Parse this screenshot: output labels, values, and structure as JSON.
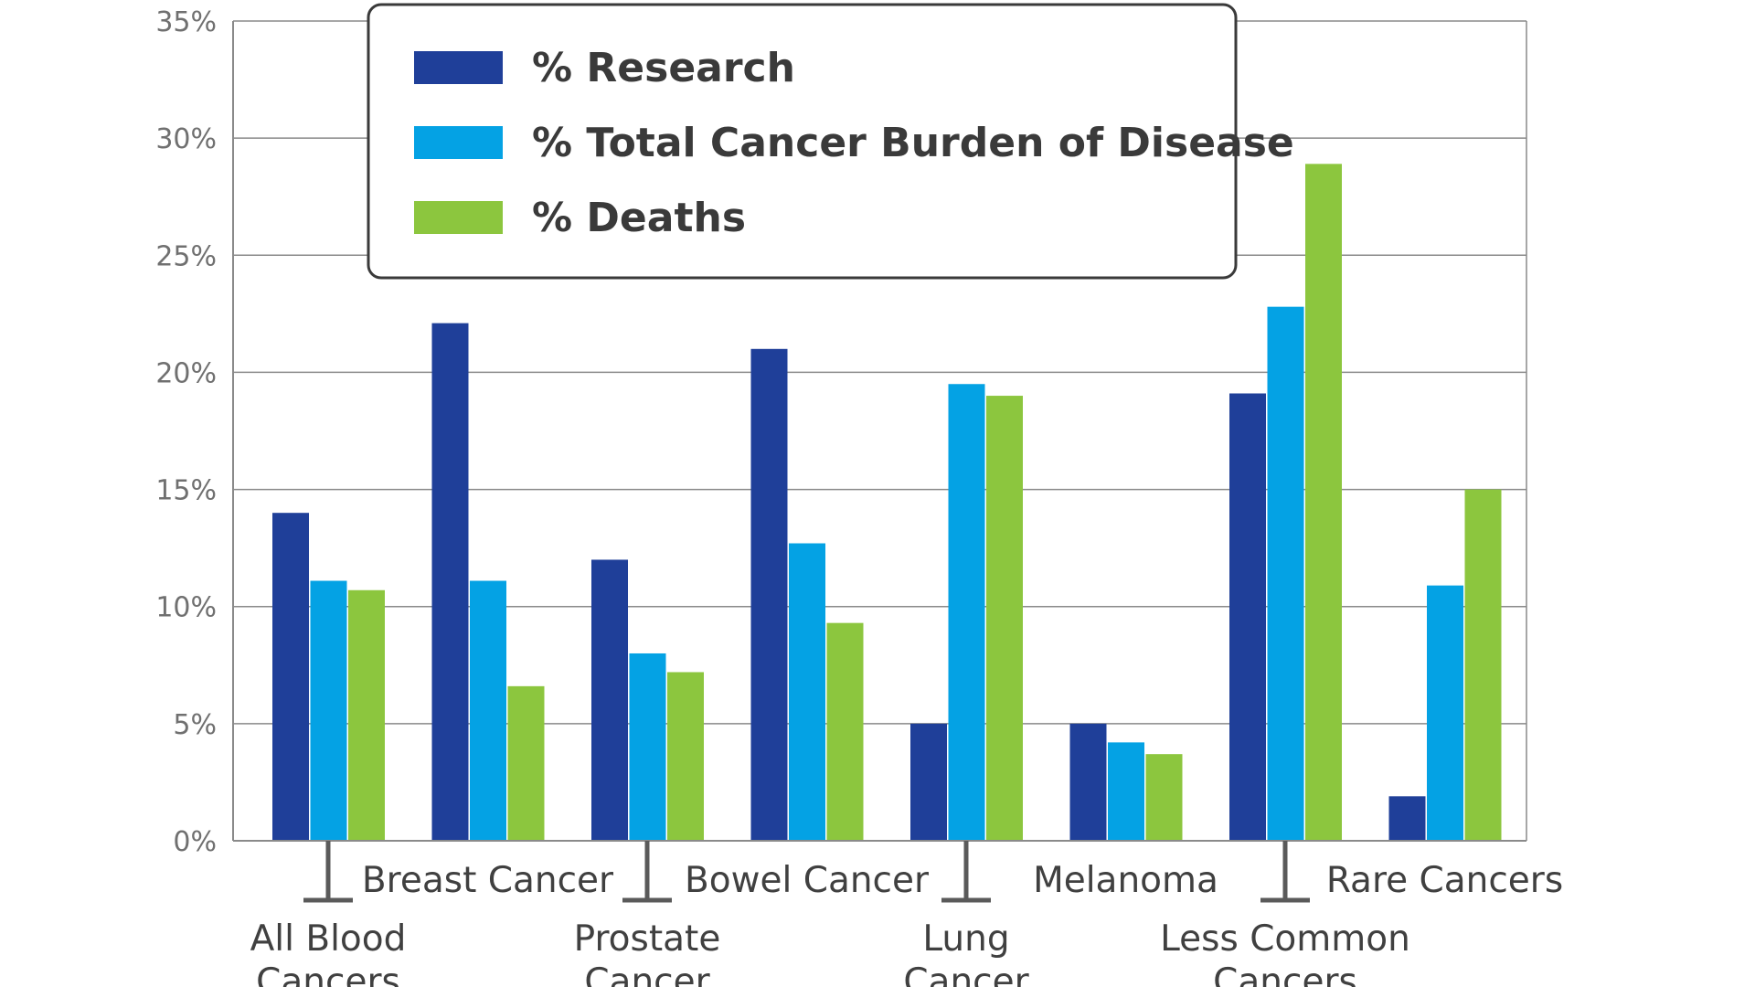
{
  "chart_data": {
    "type": "bar",
    "categories": [
      [
        "All Blood",
        "Cancers"
      ],
      [
        "Breast Cancer"
      ],
      [
        "Prostate",
        "Cancer"
      ],
      [
        "Bowel Cancer"
      ],
      [
        "Lung",
        "Cancer"
      ],
      [
        "Melanoma"
      ],
      [
        "Less Common",
        "Cancers"
      ],
      [
        "Rare Cancers"
      ]
    ],
    "series": [
      {
        "name": "% Research",
        "color": "#1f3f99",
        "values": [
          14.0,
          22.1,
          12.0,
          21.0,
          5.0,
          5.0,
          19.1,
          1.9
        ]
      },
      {
        "name": "% Total Cancer Burden of Disease",
        "color": "#04a2e4",
        "values": [
          11.1,
          11.1,
          8.0,
          12.7,
          19.5,
          4.2,
          22.8,
          10.9
        ]
      },
      {
        "name": "% Deaths",
        "color": "#8cc63e",
        "values": [
          10.7,
          6.6,
          7.2,
          9.3,
          19.0,
          3.7,
          28.9,
          15.0
        ]
      }
    ],
    "yticks": [
      "0%",
      "5%",
      "10%",
      "15%",
      "20%",
      "25%",
      "30%",
      "35%"
    ],
    "ylim": [
      0,
      35
    ],
    "grid": true,
    "legend_position": "top-left",
    "title": "",
    "xlabel": "",
    "ylabel": ""
  }
}
